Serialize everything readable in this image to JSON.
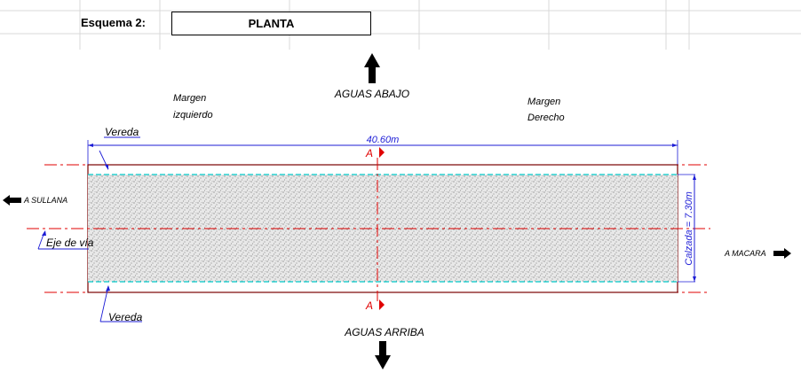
{
  "header": {
    "label": "Esquema 2:",
    "title": "PLANTA"
  },
  "diagram": {
    "aguas_abajo": "AGUAS ABAJO",
    "aguas_arriba": "AGUAS ARRIBA",
    "margen_izquierdo_line1": "Margen",
    "margen_izquierdo_line2": "izquierdo",
    "margen_derecho_line1": "Margen",
    "margen_derecho_line2": "Derecho",
    "vereda_top": "Vereda",
    "vereda_bottom": "Vereda",
    "eje_de_via": "Eje de vía",
    "length_dim": "40.60m",
    "calzada_dim": "Calzada = 7.30m",
    "section_top": "A",
    "section_bottom": "A",
    "to_west": "A SULLANA",
    "to_east": "A MACARA"
  },
  "colors": {
    "section_red": "#e00000",
    "dimension_blue": "#1c1cd6",
    "lane_cyan": "#00c8c8",
    "border_dark_red": "#7a0000",
    "grid": "#d9d9d9"
  }
}
